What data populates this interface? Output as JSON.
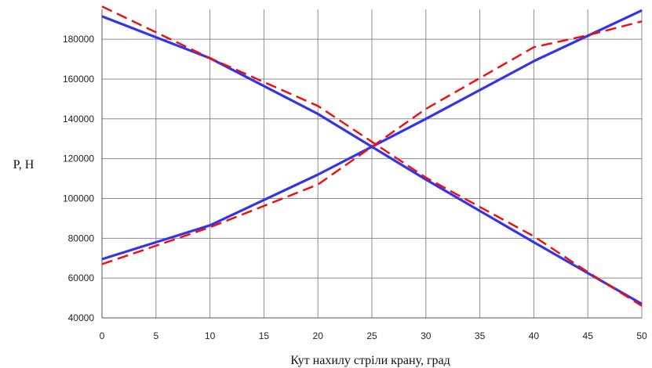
{
  "chart_data": {
    "type": "line",
    "title": "",
    "xlabel": "Кут нахилу стріли крану, град",
    "ylabel": "P, Н",
    "xlim": [
      0,
      50
    ],
    "ylim": [
      40000,
      195000
    ],
    "x_ticks": [
      0,
      5,
      10,
      15,
      20,
      25,
      30,
      35,
      40,
      45,
      50
    ],
    "y_ticks": [
      40000,
      60000,
      80000,
      100000,
      120000,
      140000,
      160000,
      180000
    ],
    "grid": true,
    "legend": "none",
    "series": [
      {
        "color": "#3333ee",
        "style": "solid",
        "x": [
          0,
          10,
          20,
          30,
          40,
          50
        ],
        "values": [
          191500,
          170500,
          142500,
          109500,
          78000,
          47000
        ]
      },
      {
        "color": "#3333ee",
        "style": "solid",
        "x": [
          0,
          10,
          20,
          30,
          40,
          50
        ],
        "values": [
          69500,
          86500,
          112000,
          140000,
          169000,
          194500
        ]
      },
      {
        "color": "#ee1111",
        "style": "dashed",
        "x": [
          0,
          10,
          20,
          30,
          40,
          45,
          50
        ],
        "values": [
          196500,
          170500,
          146500,
          110500,
          81000,
          63000,
          46000
        ]
      },
      {
        "color": "#ee1111",
        "style": "dashed",
        "x": [
          0,
          10,
          20,
          30,
          40,
          45,
          50
        ],
        "values": [
          67000,
          85500,
          107000,
          145000,
          176000,
          182000,
          189000
        ]
      }
    ]
  }
}
